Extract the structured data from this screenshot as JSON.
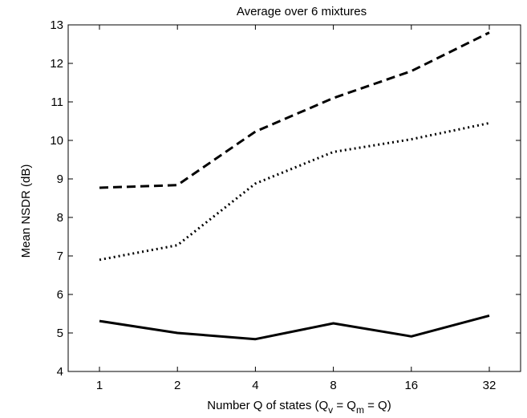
{
  "chart_data": {
    "type": "line",
    "title": "Average over 6 mixtures",
    "xlabel_parts": {
      "prefix": "Number Q of states (Q",
      "sub_v": "v",
      "mid": " = Q",
      "sub_m": "m",
      "suffix": " = Q)"
    },
    "ylabel": "Mean NSDR (dB)",
    "categories": [
      "1",
      "2",
      "4",
      "8",
      "16",
      "32"
    ],
    "ylim": [
      4,
      13
    ],
    "yticks": [
      4,
      5,
      6,
      7,
      8,
      9,
      10,
      11,
      12,
      13
    ],
    "grid": false,
    "series": [
      {
        "style": "dashed",
        "values": [
          8.77,
          8.84,
          10.23,
          11.1,
          11.8,
          12.8
        ],
        "color": "#000000"
      },
      {
        "style": "dotted",
        "values": [
          6.9,
          7.28,
          8.88,
          9.7,
          10.03,
          10.45
        ],
        "color": "#000000"
      },
      {
        "style": "solid",
        "values": [
          5.31,
          5.0,
          4.84,
          5.25,
          4.91,
          5.45
        ],
        "color": "#000000"
      }
    ]
  }
}
